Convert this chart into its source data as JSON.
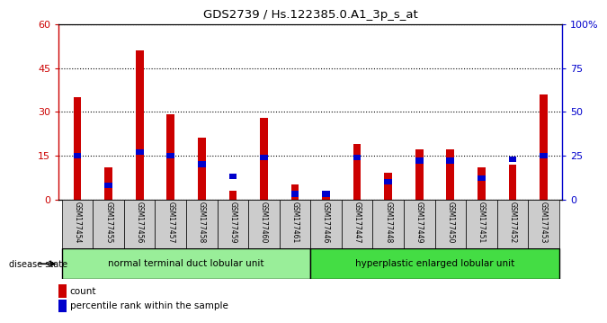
{
  "title": "GDS2739 / Hs.122385.0.A1_3p_s_at",
  "samples": [
    "GSM177454",
    "GSM177455",
    "GSM177456",
    "GSM177457",
    "GSM177458",
    "GSM177459",
    "GSM177460",
    "GSM177461",
    "GSM177446",
    "GSM177447",
    "GSM177448",
    "GSM177449",
    "GSM177450",
    "GSM177451",
    "GSM177452",
    "GSM177453"
  ],
  "counts": [
    35,
    11,
    51,
    29,
    21,
    3,
    28,
    5,
    3,
    19,
    9,
    17,
    17,
    11,
    12,
    36
  ],
  "percentiles": [
    25,
    8,
    27,
    25,
    20,
    13,
    24,
    3,
    3,
    24,
    10,
    22,
    22,
    12,
    23,
    25
  ],
  "group1_label": "normal terminal duct lobular unit",
  "group2_label": "hyperplastic enlarged lobular unit",
  "group1_count": 8,
  "group2_count": 8,
  "disease_state_label": "disease state",
  "ylim_left": [
    0,
    60
  ],
  "ylim_right": [
    0,
    100
  ],
  "yticks_left": [
    0,
    15,
    30,
    45,
    60
  ],
  "ytick_labels_left": [
    "0",
    "15",
    "30",
    "45",
    "60"
  ],
  "ytick_labels_right": [
    "0",
    "25",
    "50",
    "75",
    "100%"
  ],
  "bar_color_count": "#cc0000",
  "bar_color_pct": "#0000cc",
  "bar_width": 0.25,
  "bg_color": "#ffffff",
  "tick_label_bg": "#cccccc",
  "group1_bg": "#99ee99",
  "group2_bg": "#44dd44",
  "legend_count": "count",
  "legend_pct": "percentile rank within the sample"
}
